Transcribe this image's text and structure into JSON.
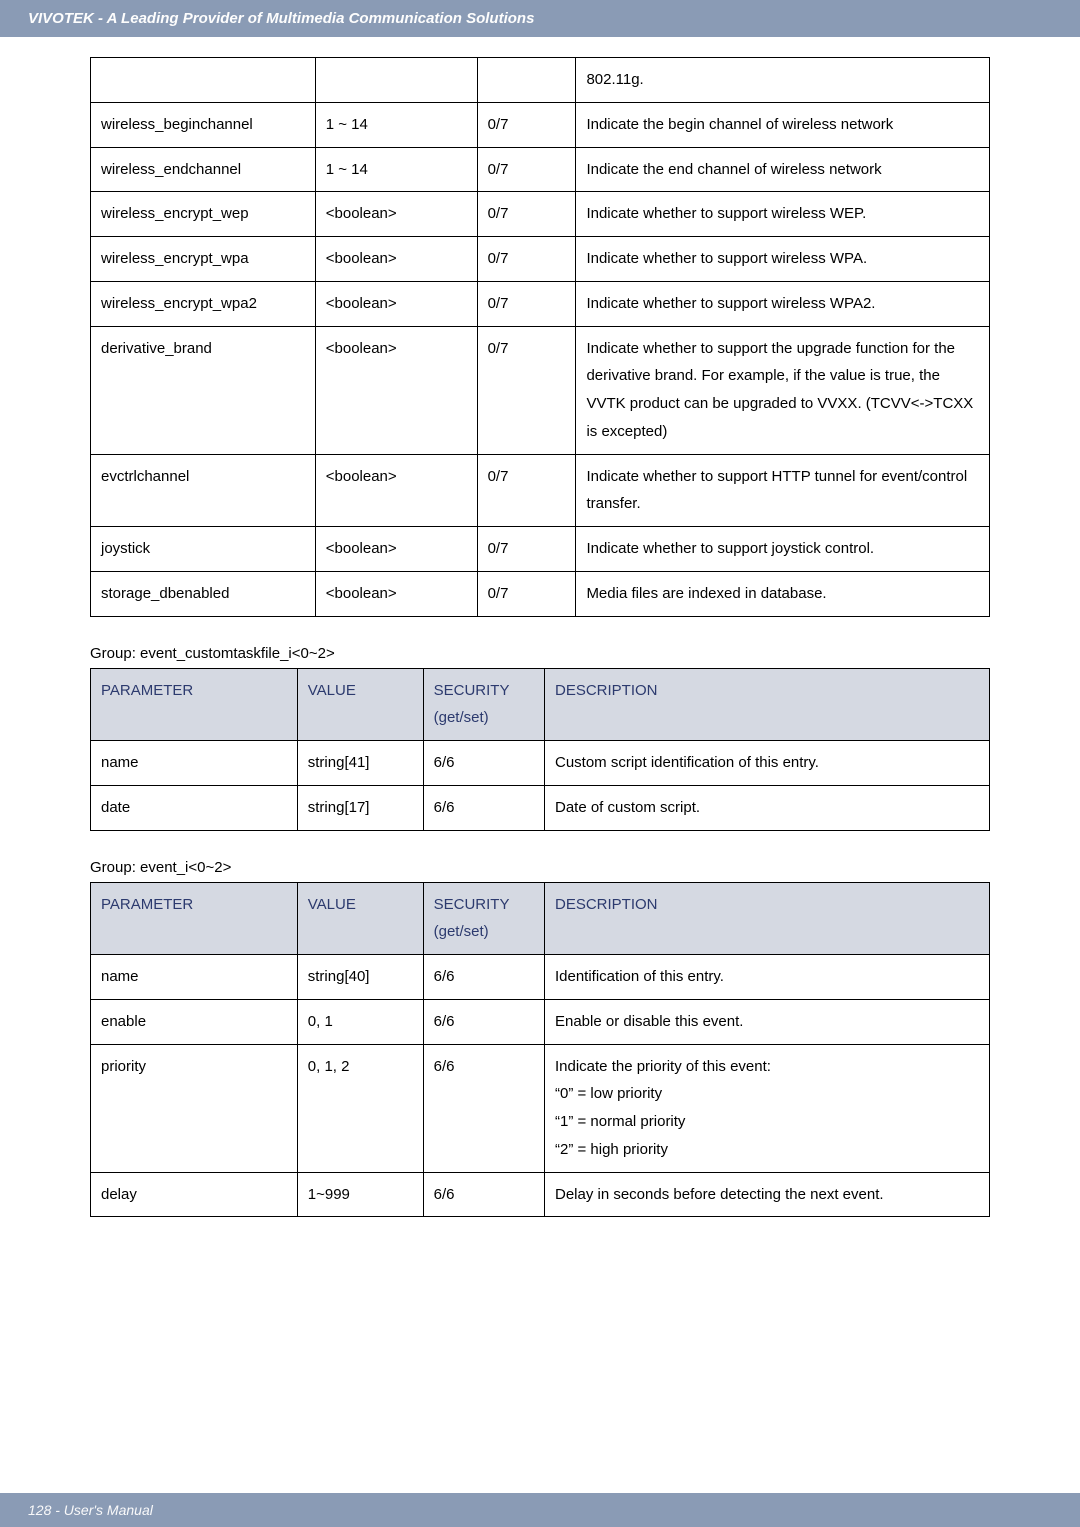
{
  "header_text": "VIVOTEK - A Leading Provider of Multimedia Communication Solutions",
  "footer_text": "128 - User's Manual",
  "table1": {
    "rows": [
      {
        "p": "",
        "v": "",
        "s": "",
        "d": "802.11g."
      },
      {
        "p": "wireless_beginchannel",
        "v": "1 ~ 14",
        "s": "0/7",
        "d": "Indicate the begin channel of wireless network"
      },
      {
        "p": "wireless_endchannel",
        "v": "1 ~ 14",
        "s": "0/7",
        "d": "Indicate the end channel of wireless network"
      },
      {
        "p": "wireless_encrypt_wep",
        "v": "<boolean>",
        "s": "0/7",
        "d": "Indicate whether to support wireless WEP."
      },
      {
        "p": "wireless_encrypt_wpa",
        "v": "<boolean>",
        "s": "0/7",
        "d": "Indicate whether to support wireless WPA."
      },
      {
        "p": "wireless_encrypt_wpa2",
        "v": "<boolean>",
        "s": "0/7",
        "d": "Indicate whether to support wireless WPA2."
      },
      {
        "p": "derivative_brand",
        "v": "<boolean>",
        "s": "0/7",
        "d": "Indicate whether to support the upgrade function for the derivative brand. For example, if the value is true, the VVTK product can be upgraded to VVXX. (TCVV<->TCXX is excepted)"
      },
      {
        "p": "evctrlchannel",
        "v": "<boolean>",
        "s": "0/7",
        "d": "Indicate whether to support HTTP tunnel for event/control transfer."
      },
      {
        "p": "joystick",
        "v": "<boolean>",
        "s": "0/7",
        "d": "Indicate whether to support joystick control."
      },
      {
        "p": "storage_dbenabled",
        "v": "<boolean>",
        "s": "0/7",
        "d": "Media files are indexed in database."
      }
    ]
  },
  "group2_label": "Group: event_customtaskfile_i<0~2>",
  "table2": {
    "h1": "PARAMETER",
    "h2": "VALUE",
    "h3": "SECURITY",
    "h3b": "(get/set)",
    "h4": "DESCRIPTION",
    "rows": [
      {
        "p": "name",
        "v": "string[41]",
        "s": "6/6",
        "d": "Custom script identification of this entry."
      },
      {
        "p": "date",
        "v": "string[17]",
        "s": "6/6",
        "d": "Date of custom script."
      }
    ]
  },
  "group3_label": "Group: event_i<0~2>",
  "table3": {
    "h1": "PARAMETER",
    "h2": "VALUE",
    "h3": "SECURITY",
    "h3b": "(get/set)",
    "h4": "DESCRIPTION",
    "rows": [
      {
        "p": "name",
        "v": "string[40]",
        "s": "6/6",
        "d": "Identification of this entry."
      },
      {
        "p": "enable",
        "v": "0, 1",
        "s": "6/6",
        "d": "Enable or disable this event."
      },
      {
        "p": "priority",
        "v": "0, 1, 2",
        "s": "6/6",
        "d": "Indicate the priority of this event:\n“0” = low priority\n“1” = normal priority\n“2” = high priority"
      },
      {
        "p": "delay",
        "v": "1~999",
        "s": "6/6",
        "d": "Delay in seconds before detecting the next event."
      }
    ]
  }
}
